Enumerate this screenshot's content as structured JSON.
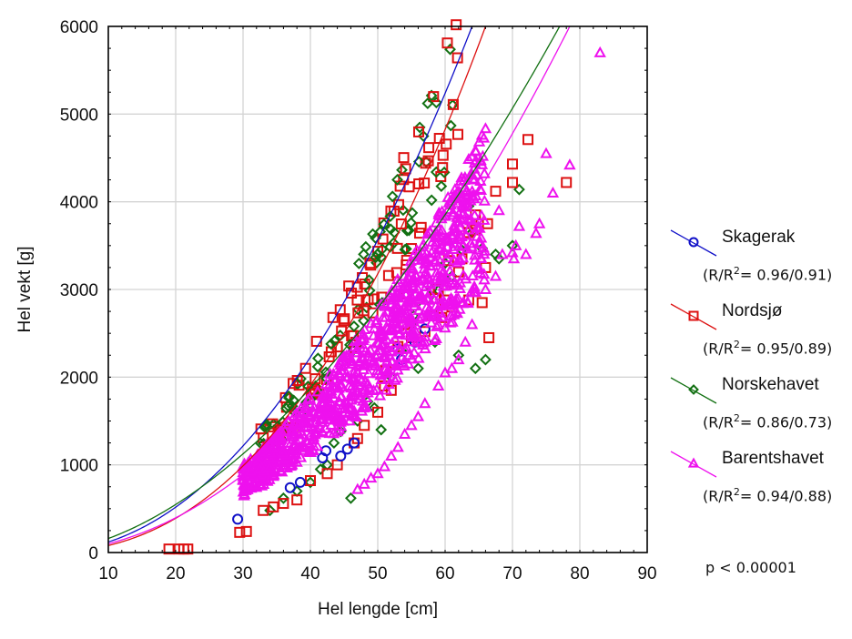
{
  "chart_data": {
    "type": "scatter",
    "title": "",
    "xlabel": "Hel lengde [cm]",
    "ylabel": "Hel vekt [g]",
    "xlim": [
      10,
      90
    ],
    "ylim": [
      0,
      6000
    ],
    "x_ticks": [
      10,
      20,
      30,
      40,
      50,
      60,
      70,
      80,
      90
    ],
    "y_ticks": [
      0,
      1000,
      2000,
      3000,
      4000,
      5000,
      6000
    ],
    "grid": true,
    "legend_position": "right",
    "annotation": "p < 0.00001",
    "series": [
      {
        "name": "Skagerak",
        "color": "#1010c8",
        "marker": "circle",
        "stat_prefix": "(R/R",
        "stat_suffix": "= 0.96/0.91)",
        "r": 0.96,
        "r2": 0.91,
        "fit": {
          "at10": 120,
          "at64": 6000
        },
        "points": [
          [
            29.2,
            380
          ],
          [
            37,
            740
          ],
          [
            38.5,
            800
          ],
          [
            41.8,
            1080
          ],
          [
            42.3,
            1160
          ],
          [
            44.5,
            1100
          ],
          [
            45.5,
            1180
          ],
          [
            46.5,
            1250
          ],
          [
            53.5,
            2200
          ],
          [
            55.5,
            2400
          ],
          [
            57,
            2550
          ],
          [
            53,
            2320
          ]
        ]
      },
      {
        "name": "Nordsjø",
        "color": "#dd1111",
        "marker": "square",
        "stat_prefix": "(R/R",
        "stat_suffix": "= 0.95/0.89)",
        "r": 0.95,
        "r2": 0.89,
        "fit": {
          "at10": 80,
          "at66": 6000
        },
        "points": [
          [
            19,
            40
          ],
          [
            20.5,
            40
          ],
          [
            21.2,
            40
          ],
          [
            21.8,
            40
          ],
          [
            29.5,
            230
          ],
          [
            30.5,
            240
          ],
          [
            33,
            480
          ],
          [
            34.5,
            520
          ],
          [
            36,
            560
          ],
          [
            38,
            600
          ],
          [
            40,
            820
          ],
          [
            42.5,
            900
          ],
          [
            44,
            1000
          ],
          [
            46.5,
            1250
          ],
          [
            47,
            1300
          ],
          [
            48,
            1450
          ],
          [
            50,
            1600
          ],
          [
            51,
            1900
          ],
          [
            51.2,
            2080
          ],
          [
            52,
            1850
          ],
          [
            53,
            2350
          ],
          [
            54,
            2600
          ],
          [
            54.3,
            2950
          ],
          [
            55,
            2450
          ],
          [
            57,
            2520
          ],
          [
            58,
            2700
          ],
          [
            59,
            3000
          ],
          [
            60,
            2880
          ],
          [
            61,
            2800
          ],
          [
            62,
            3200
          ],
          [
            63.5,
            3650
          ],
          [
            64,
            3750
          ],
          [
            64.5,
            3850
          ],
          [
            64.5,
            3680
          ],
          [
            65.5,
            2850
          ],
          [
            66,
            3250
          ],
          [
            66.3,
            3750
          ],
          [
            66.5,
            2450
          ],
          [
            67.5,
            4120
          ],
          [
            70,
            4430
          ],
          [
            70,
            4220
          ],
          [
            72.3,
            4710
          ],
          [
            78,
            4220
          ],
          [
            60.5,
            3330
          ],
          [
            58.5,
            2900
          ],
          [
            62.5,
            3350
          ],
          [
            63.5,
            2880
          ],
          [
            59.5,
            2680
          ]
        ]
      },
      {
        "name": "Norskehavet",
        "color": "#127012",
        "marker": "diamond",
        "stat_prefix": "(R/R",
        "stat_suffix": "= 0.86/0.73)",
        "r": 0.86,
        "r2": 0.73,
        "fit": {
          "at10": 160,
          "at77": 6000
        },
        "points": [
          [
            34,
            480
          ],
          [
            36,
            620
          ],
          [
            38,
            700
          ],
          [
            40,
            800
          ],
          [
            41.5,
            950
          ],
          [
            42.5,
            1000
          ],
          [
            43.5,
            1250
          ],
          [
            44.5,
            1380
          ],
          [
            46,
            620
          ],
          [
            47,
            1500
          ],
          [
            48.5,
            1720
          ],
          [
            49.5,
            1650
          ],
          [
            50.5,
            1400
          ],
          [
            52,
            2000
          ],
          [
            53.5,
            2300
          ],
          [
            54.5,
            2650
          ],
          [
            55,
            2600
          ],
          [
            55.3,
            2700
          ],
          [
            56,
            2860
          ],
          [
            57.5,
            2900
          ],
          [
            58,
            3000
          ],
          [
            59,
            2990
          ],
          [
            60,
            3300
          ],
          [
            61,
            3150
          ],
          [
            62.5,
            3450
          ],
          [
            63.5,
            3950
          ],
          [
            64,
            3650
          ],
          [
            65.5,
            3470
          ],
          [
            67.5,
            3400
          ],
          [
            68,
            3350
          ],
          [
            70,
            3500
          ],
          [
            71,
            4140
          ],
          [
            62,
            2250
          ],
          [
            66,
            2200
          ],
          [
            56,
            2100
          ],
          [
            58.5,
            2400
          ],
          [
            64.5,
            2100
          ]
        ]
      },
      {
        "name": "Barentshavet",
        "color": "#ee11ee",
        "marker": "triangle",
        "stat_prefix": "(R/R",
        "stat_suffix": "= 0.94/0.88)",
        "r": 0.94,
        "r2": 0.88,
        "fit": {
          "at10": 100,
          "at78.5": 6000
        },
        "points": [
          [
            65,
            3250
          ],
          [
            66,
            3000
          ],
          [
            67.5,
            3150
          ],
          [
            68,
            3900
          ],
          [
            68.5,
            3400
          ],
          [
            70,
            3420
          ],
          [
            70.2,
            3350
          ],
          [
            70.5,
            3500
          ],
          [
            71,
            3720
          ],
          [
            72,
            3400
          ],
          [
            73.5,
            3640
          ],
          [
            74,
            3750
          ],
          [
            75,
            4550
          ],
          [
            76,
            4100
          ],
          [
            78.5,
            4420
          ],
          [
            83,
            5700
          ],
          [
            64,
            2600
          ],
          [
            63,
            2400
          ],
          [
            62,
            2200
          ],
          [
            61,
            2100
          ],
          [
            60,
            2050
          ],
          [
            59,
            1900
          ],
          [
            57,
            1700
          ],
          [
            56,
            1550
          ],
          [
            55,
            1450
          ],
          [
            54,
            1350
          ],
          [
            53,
            1200
          ],
          [
            52,
            1100
          ],
          [
            51,
            980
          ],
          [
            50,
            900
          ],
          [
            49,
            850
          ],
          [
            48,
            780
          ],
          [
            47,
            720
          ]
        ]
      }
    ]
  }
}
